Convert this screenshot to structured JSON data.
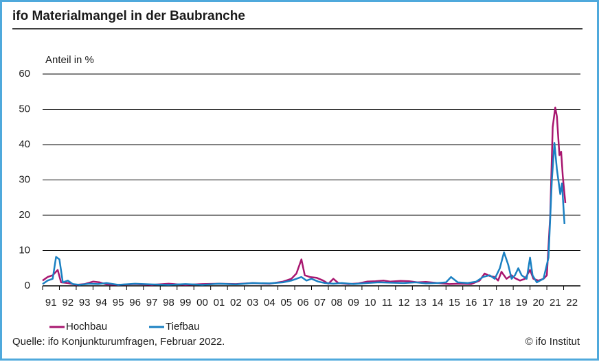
{
  "chart_data": {
    "type": "line",
    "title": "ifo Materialmangel in der Baubranche",
    "y_label": "Anteil in %",
    "source": "Quelle: ifo Konjunkturumfragen, Februar 2022.",
    "copyright": "© ifo Institut",
    "ylim": [
      0,
      60
    ],
    "yticks": [
      0,
      10,
      20,
      30,
      40,
      50,
      60
    ],
    "xlim": [
      1991,
      2023
    ],
    "xticks": [
      {
        "value": 1991,
        "label": "91"
      },
      {
        "value": 1992,
        "label": "92"
      },
      {
        "value": 1993,
        "label": "93"
      },
      {
        "value": 1994,
        "label": "94"
      },
      {
        "value": 1995,
        "label": "95"
      },
      {
        "value": 1996,
        "label": "96"
      },
      {
        "value": 1997,
        "label": "97"
      },
      {
        "value": 1998,
        "label": "98"
      },
      {
        "value": 1999,
        "label": "99"
      },
      {
        "value": 2000,
        "label": "00"
      },
      {
        "value": 2001,
        "label": "01"
      },
      {
        "value": 2002,
        "label": "02"
      },
      {
        "value": 2003,
        "label": "03"
      },
      {
        "value": 2004,
        "label": "04"
      },
      {
        "value": 2005,
        "label": "05"
      },
      {
        "value": 2006,
        "label": "06"
      },
      {
        "value": 2007,
        "label": "07"
      },
      {
        "value": 2008,
        "label": "08"
      },
      {
        "value": 2009,
        "label": "09"
      },
      {
        "value": 2010,
        "label": "10"
      },
      {
        "value": 2011,
        "label": "11"
      },
      {
        "value": 2012,
        "label": "12"
      },
      {
        "value": 2013,
        "label": "13"
      },
      {
        "value": 2014,
        "label": "14"
      },
      {
        "value": 2015,
        "label": "15"
      },
      {
        "value": 2016,
        "label": "16"
      },
      {
        "value": 2017,
        "label": "17"
      },
      {
        "value": 2018,
        "label": "18"
      },
      {
        "value": 2019,
        "label": "19"
      },
      {
        "value": 2020,
        "label": "20"
      },
      {
        "value": 2021,
        "label": "21"
      },
      {
        "value": 2022,
        "label": "22"
      }
    ],
    "grid": true,
    "series": [
      {
        "name": "Hochbau",
        "color": "#a8166f",
        "x": [
          1991.0,
          1991.3,
          1991.6,
          1991.9,
          1992.1,
          1992.5,
          1993.0,
          1993.5,
          1994.0,
          1994.4,
          1994.8,
          1995.5,
          1996.5,
          1997.5,
          1998.5,
          1999.5,
          2000.5,
          2001.5,
          2002.5,
          2003.5,
          2004.5,
          2005.3,
          2005.8,
          2006.1,
          2006.4,
          2006.6,
          2006.9,
          2007.3,
          2007.7,
          2008.0,
          2008.3,
          2008.6,
          2009.2,
          2009.8,
          2010.3,
          2010.8,
          2011.3,
          2011.7,
          2012.3,
          2012.8,
          2013.3,
          2013.8,
          2014.5,
          2015.2,
          2015.8,
          2016.5,
          2017.0,
          2017.3,
          2017.6,
          2017.9,
          2018.1,
          2018.3,
          2018.6,
          2018.9,
          2019.1,
          2019.4,
          2019.7,
          2020.0,
          2020.2,
          2020.5,
          2020.8,
          2021.0,
          2021.2,
          2021.35,
          2021.5,
          2021.6,
          2021.75,
          2021.85,
          2021.95,
          2022.1
        ],
        "values": [
          1.5,
          2.5,
          3.0,
          4.5,
          1.0,
          0.8,
          0.3,
          0.5,
          1.2,
          1.0,
          0.4,
          0.3,
          0.5,
          0.3,
          0.6,
          0.3,
          0.5,
          0.6,
          0.5,
          0.8,
          0.6,
          1.2,
          2.0,
          3.5,
          7.5,
          3.0,
          2.5,
          2.3,
          1.5,
          0.6,
          2.0,
          0.8,
          0.5,
          0.7,
          1.2,
          1.3,
          1.5,
          1.2,
          1.4,
          1.3,
          1.0,
          1.1,
          0.8,
          0.5,
          0.6,
          0.5,
          1.5,
          3.5,
          2.8,
          2.5,
          1.5,
          4.0,
          2.0,
          3.0,
          2.2,
          1.5,
          2.0,
          4.5,
          2.0,
          1.5,
          2.0,
          3.0,
          20,
          45,
          50.5,
          48,
          37,
          38,
          31,
          23.5
        ]
      },
      {
        "name": "Tiefbau",
        "color": "#1a80c2",
        "x": [
          1991.0,
          1991.3,
          1991.6,
          1991.8,
          1992.0,
          1992.2,
          1992.5,
          1992.8,
          1993.2,
          1993.8,
          1994.3,
          1994.8,
          1995.5,
          1996.5,
          1997.5,
          1998.5,
          1999.5,
          2000.5,
          2001.5,
          2002.5,
          2003.5,
          2004.5,
          2005.3,
          2005.8,
          2006.1,
          2006.4,
          2006.7,
          2007.0,
          2007.4,
          2007.8,
          2008.3,
          2008.8,
          2009.5,
          2010.3,
          2011.0,
          2011.7,
          2012.5,
          2013.2,
          2013.8,
          2014.5,
          2015.0,
          2015.3,
          2015.7,
          2016.3,
          2016.8,
          2017.2,
          2017.6,
          2017.9,
          2018.2,
          2018.45,
          2018.7,
          2018.9,
          2019.1,
          2019.3,
          2019.5,
          2019.8,
          2020.0,
          2020.15,
          2020.4,
          2020.8,
          2021.1,
          2021.3,
          2021.45,
          2021.6,
          2021.8,
          2021.9,
          2022.05
        ],
        "values": [
          0.5,
          1.5,
          2.0,
          8.2,
          7.5,
          1.0,
          1.5,
          0.5,
          0.3,
          0.6,
          0.5,
          0.8,
          0.3,
          0.6,
          0.4,
          0.3,
          0.5,
          0.3,
          0.6,
          0.4,
          0.8,
          0.7,
          1.0,
          1.5,
          2.0,
          2.5,
          1.5,
          2.0,
          1.2,
          0.8,
          0.6,
          0.8,
          0.5,
          0.8,
          1.0,
          0.9,
          0.8,
          1.0,
          0.7,
          0.8,
          1.0,
          2.5,
          1.0,
          0.8,
          1.2,
          2.5,
          3.0,
          2.0,
          5.0,
          9.5,
          6.0,
          2.0,
          3.0,
          5.0,
          3.0,
          2.0,
          8.0,
          3.0,
          1.0,
          2.0,
          8.0,
          30,
          40.5,
          33,
          26,
          29,
          17.5
        ]
      }
    ]
  }
}
